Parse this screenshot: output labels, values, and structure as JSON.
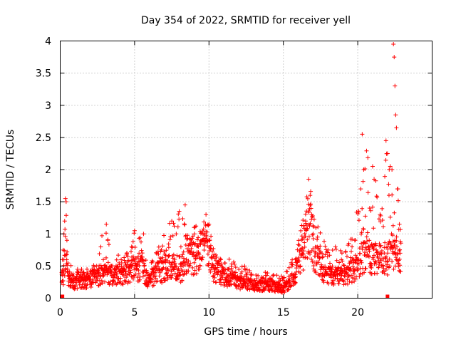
{
  "chart_data": {
    "type": "scatter",
    "title": "Day 354 of 2022, SRMTID for receiver yell",
    "xlabel": "GPS time / hours",
    "ylabel": "SRMTID / TECUs",
    "xlim": [
      0,
      25
    ],
    "ylim": [
      0,
      4
    ],
    "xticks": [
      0,
      5,
      10,
      15,
      20
    ],
    "xtick_labels": [
      "0",
      "5",
      "10",
      "15",
      "20"
    ],
    "yticks": [
      0,
      0.5,
      1,
      1.5,
      2,
      2.5,
      3,
      3.5,
      4
    ],
    "ytick_labels": [
      "0",
      "0.5",
      "1",
      "1.5",
      "2",
      "2.5",
      "3",
      "3.5",
      "4"
    ],
    "grid": true,
    "marker": "+",
    "marker_color": "#ff0000",
    "series": [
      {
        "name": "SRMTID",
        "profile": [
          [
            0.2,
            0.35,
            0.5
          ],
          [
            0.35,
            0.7,
            1.55
          ],
          [
            0.6,
            0.3,
            0.55
          ],
          [
            1.0,
            0.25,
            0.45
          ],
          [
            2.0,
            0.3,
            0.5
          ],
          [
            3.1,
            0.4,
            1.15
          ],
          [
            3.5,
            0.35,
            0.6
          ],
          [
            4.5,
            0.4,
            0.8
          ],
          [
            5.0,
            0.5,
            1.05
          ],
          [
            5.5,
            0.45,
            0.9
          ],
          [
            6.0,
            0.25,
            0.5
          ],
          [
            6.5,
            0.4,
            0.75
          ],
          [
            7.5,
            0.5,
            1.25
          ],
          [
            8.0,
            0.3,
            1.35
          ],
          [
            8.4,
            0.7,
            1.45
          ],
          [
            9.0,
            0.6,
            1.1
          ],
          [
            9.8,
            0.9,
            1.3
          ],
          [
            10.3,
            0.45,
            0.8
          ],
          [
            11.0,
            0.35,
            0.7
          ],
          [
            12.0,
            0.25,
            0.5
          ],
          [
            13.0,
            0.2,
            0.45
          ],
          [
            14.0,
            0.2,
            0.4
          ],
          [
            15.0,
            0.15,
            0.35
          ],
          [
            15.8,
            0.35,
            0.7
          ],
          [
            16.7,
            1.1,
            1.85
          ],
          [
            17.2,
            0.6,
            1.2
          ],
          [
            18.0,
            0.35,
            0.8
          ],
          [
            19.0,
            0.35,
            0.85
          ],
          [
            19.8,
            0.45,
            1.0
          ],
          [
            20.3,
            0.6,
            2.55
          ],
          [
            21.0,
            0.6,
            2.05
          ],
          [
            21.5,
            0.6,
            1.6
          ],
          [
            22.0,
            0.55,
            2.45
          ],
          [
            22.4,
            0.8,
            3.95
          ],
          [
            22.7,
            0.6,
            1.7
          ]
        ],
        "values": [
          [
            0.1,
            0.4
          ],
          [
            0.15,
            0.6
          ],
          [
            0.2,
            0.75
          ],
          [
            0.25,
            1.0
          ],
          [
            0.3,
            1.2
          ],
          [
            0.35,
            1.55
          ],
          [
            0.4,
            1.5
          ],
          [
            0.45,
            0.9
          ],
          [
            0.5,
            0.45
          ],
          [
            0.55,
            0.35
          ],
          [
            0.7,
            0.3
          ],
          [
            0.9,
            0.25
          ],
          [
            1.2,
            0.4
          ],
          [
            1.5,
            0.3
          ],
          [
            1.8,
            0.45
          ],
          [
            2.2,
            0.35
          ],
          [
            2.6,
            0.45
          ],
          [
            2.9,
            0.6
          ],
          [
            3.1,
            1.15
          ],
          [
            3.2,
            0.9
          ],
          [
            3.4,
            0.5
          ],
          [
            3.8,
            0.45
          ],
          [
            4.1,
            0.6
          ],
          [
            4.4,
            0.55
          ],
          [
            4.8,
            0.8
          ],
          [
            5.0,
            1.05
          ],
          [
            5.3,
            0.7
          ],
          [
            5.6,
            1.0
          ],
          [
            5.8,
            0.4
          ],
          [
            6.1,
            0.3
          ],
          [
            6.4,
            0.5
          ],
          [
            6.8,
            0.75
          ],
          [
            7.1,
            0.6
          ],
          [
            7.5,
            1.2
          ],
          [
            7.8,
            1.0
          ],
          [
            8.0,
            1.35
          ],
          [
            8.1,
            0.25
          ],
          [
            8.4,
            1.45
          ],
          [
            8.7,
            0.85
          ],
          [
            9.0,
            1.1
          ],
          [
            9.3,
            0.7
          ],
          [
            9.6,
            1.0
          ],
          [
            9.8,
            1.3
          ],
          [
            10.0,
            1.15
          ],
          [
            10.3,
            0.65
          ],
          [
            10.8,
            0.6
          ],
          [
            11.3,
            0.45
          ],
          [
            11.8,
            0.4
          ],
          [
            12.4,
            0.5
          ],
          [
            12.8,
            0.3
          ],
          [
            13.3,
            0.35
          ],
          [
            13.8,
            0.3
          ],
          [
            14.3,
            0.35
          ],
          [
            14.7,
            0.25
          ],
          [
            15.0,
            0.3
          ],
          [
            15.4,
            0.3
          ],
          [
            15.8,
            0.6
          ],
          [
            16.2,
            0.75
          ],
          [
            16.5,
            1.2
          ],
          [
            16.7,
            1.85
          ],
          [
            16.8,
            1.6
          ],
          [
            17.0,
            1.0
          ],
          [
            17.3,
            0.95
          ],
          [
            17.6,
            0.7
          ],
          [
            18.0,
            0.75
          ],
          [
            18.5,
            0.8
          ],
          [
            18.9,
            0.6
          ],
          [
            19.4,
            0.85
          ],
          [
            19.8,
            0.9
          ],
          [
            20.2,
            1.7
          ],
          [
            20.3,
            2.55
          ],
          [
            20.4,
            2.0
          ],
          [
            20.8,
            1.4
          ],
          [
            21.0,
            2.05
          ],
          [
            21.1,
            1.85
          ],
          [
            21.5,
            1.3
          ],
          [
            21.9,
            2.45
          ],
          [
            22.0,
            2.25
          ],
          [
            22.1,
            1.6
          ],
          [
            22.3,
            2.0
          ],
          [
            22.4,
            3.95
          ],
          [
            22.45,
            3.75
          ],
          [
            22.5,
            3.3
          ],
          [
            22.55,
            2.85
          ],
          [
            22.6,
            2.65
          ],
          [
            22.7,
            1.7
          ],
          [
            22.8,
            1.15
          ],
          [
            22.85,
            0.7
          ]
        ]
      }
    ]
  }
}
